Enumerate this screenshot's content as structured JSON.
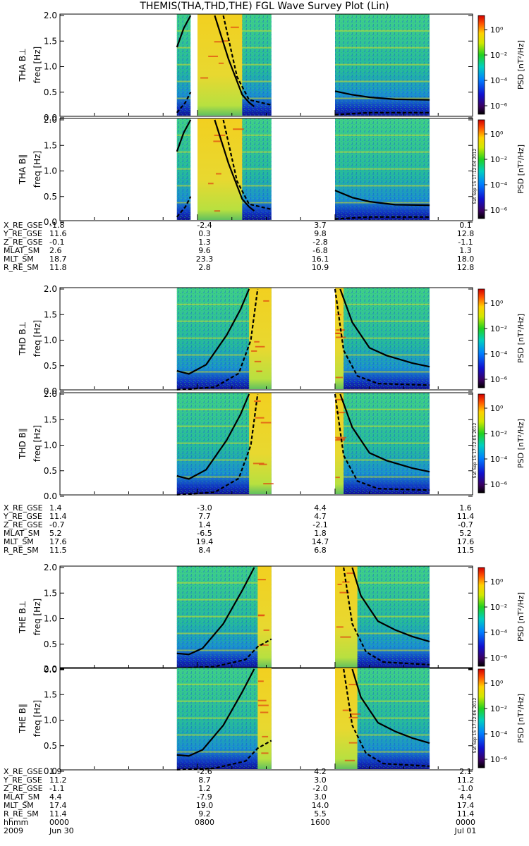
{
  "title": "THEMIS(THA,THD,THE) FGL Wave Survey Plot (Lin)",
  "colorbar": {
    "label": "PSD [nT²/Hz]",
    "ticks": [
      "10⁰",
      "10⁻²",
      "10⁻⁴",
      "10⁻⁶"
    ],
    "stamps": [
      "Sat Sep 15 17:12:04 2012",
      "Sat Sep 15 17:12:05 2012",
      "Sat Sep 15 17:12:06 2012"
    ]
  },
  "axis": {
    "ylabel": "freq [Hz]",
    "yticks": [
      "0.0",
      "0.5",
      "1.0",
      "1.5",
      "2.0"
    ]
  },
  "bottom": {
    "row_labels": [
      "hhmm",
      "2009"
    ],
    "hhmm": [
      "0000",
      "0800",
      "1600",
      "0000"
    ],
    "dates": [
      "Jun 30",
      "Jul 01"
    ]
  },
  "panels": [
    {
      "probe": "THA",
      "component": "B⊥"
    },
    {
      "probe": "THA",
      "component": "B∥"
    },
    {
      "probe": "THD",
      "component": "B⊥"
    },
    {
      "probe": "THD",
      "component": "B∥"
    },
    {
      "probe": "THE",
      "component": "B⊥"
    },
    {
      "probe": "THE",
      "component": "B∥"
    }
  ],
  "ephemeris": [
    {
      "labels": [
        "X_RE_GSE",
        "Y_RE_GSE",
        "Z_RE_GSE",
        "MLAT_SM",
        "MLT_SM",
        "R_RE_SM"
      ],
      "values": [
        [
          "-1.8",
          "-2.4",
          "3.7",
          "0.1"
        ],
        [
          "11.6",
          "0.3",
          "9.8",
          "12.8"
        ],
        [
          "-0.1",
          "1.3",
          "-2.8",
          "-1.1"
        ],
        [
          "2.6",
          "9.6",
          "-6.8",
          "1.3"
        ],
        [
          "18.7",
          "23.3",
          "16.1",
          "18.0"
        ],
        [
          "11.8",
          "2.8",
          "10.9",
          "12.8"
        ]
      ]
    },
    {
      "labels": [
        "X_RE_GSE",
        "Y_RE_GSE",
        "Z_RE_GSE",
        "MLAT_SM",
        "MLT_SM",
        "R_RE_SM"
      ],
      "values": [
        [
          "1.4",
          "-3.0",
          "4.4",
          "1.6"
        ],
        [
          "11.4",
          "7.7",
          "4.7",
          "11.4"
        ],
        [
          "-0.7",
          "1.4",
          "-2.1",
          "-0.7"
        ],
        [
          "5.2",
          "-6.5",
          "1.8",
          "5.2"
        ],
        [
          "17.6",
          "19.4",
          "14.7",
          "17.6"
        ],
        [
          "11.5",
          "8.4",
          "6.8",
          "11.5"
        ]
      ]
    },
    {
      "labels": [
        "X_RE_GSE",
        "Y_RE_GSE",
        "Z_RE_GSE",
        "MLAT_SM",
        "MLT_SM",
        "R_RE_SM"
      ],
      "values": [
        [
          "1.9",
          "-2.6",
          "4.2",
          "2.1"
        ],
        [
          "11.2",
          "8.7",
          "3.0",
          "11.2"
        ],
        [
          "-1.1",
          "1.2",
          "-2.0",
          "-1.0"
        ],
        [
          "4.4",
          "-7.9",
          "3.0",
          "4.4"
        ],
        [
          "17.4",
          "19.0",
          "14.0",
          "17.4"
        ],
        [
          "11.4",
          "9.2",
          "5.5",
          "11.4"
        ]
      ]
    }
  ],
  "chart_data": {
    "type": "heatmap",
    "title": "THEMIS(THA,THD,THE) FGL Wave Survey Plot (Lin)",
    "ylabel": "freq [Hz]",
    "ylim": [
      0,
      2.0
    ],
    "x_hours": [
      0,
      24
    ],
    "color_scale": "log",
    "color_range": [
      1e-07,
      10
    ],
    "data_coverage_hours": [
      [
        [
          6.8,
          7.6
        ],
        [
          8.0,
          12.3
        ],
        [
          16.0,
          21.5
        ]
      ],
      [
        [
          6.8,
          7.6
        ],
        [
          8.0,
          12.3
        ],
        [
          16.0,
          21.5
        ]
      ],
      [
        [
          6.8,
          12.3
        ],
        [
          16.0,
          21.5
        ]
      ],
      [
        [
          6.8,
          12.3
        ],
        [
          16.0,
          21.5
        ]
      ],
      [
        [
          6.8,
          12.3
        ],
        [
          16.0,
          21.5
        ]
      ],
      [
        [
          6.8,
          12.3
        ],
        [
          16.0,
          21.5
        ]
      ]
    ],
    "series": [
      {
        "panel": "THA B⊥",
        "solid_lines": [
          [
            [
              6.8,
              1.38
            ],
            [
              7.2,
              1.75
            ],
            [
              7.6,
              2.0
            ]
          ],
          [
            [
              9.0,
              2.0
            ],
            [
              9.8,
              1.15
            ],
            [
              10.6,
              0.45
            ],
            [
              11.0,
              0.3
            ],
            [
              11.3,
              0.22
            ]
          ],
          [
            [
              16.0,
              0.52
            ],
            [
              17.0,
              0.45
            ],
            [
              18.0,
              0.4
            ],
            [
              19.5,
              0.36
            ],
            [
              21.5,
              0.35
            ]
          ]
        ],
        "dashed_lines": [
          [
            [
              6.8,
              0.1
            ],
            [
              7.3,
              0.3
            ],
            [
              7.6,
              0.5
            ]
          ],
          [
            [
              9.5,
              2.0
            ],
            [
              10.3,
              0.8
            ],
            [
              11.0,
              0.35
            ],
            [
              12.3,
              0.25
            ]
          ],
          [
            [
              16.0,
              0.06
            ],
            [
              18.0,
              0.1
            ],
            [
              21.5,
              0.1
            ]
          ]
        ]
      },
      {
        "panel": "THA B∥",
        "solid_lines": [
          [
            [
              6.8,
              1.38
            ],
            [
              7.2,
              1.75
            ],
            [
              7.6,
              2.0
            ]
          ],
          [
            [
              9.0,
              2.0
            ],
            [
              9.8,
              1.15
            ],
            [
              10.6,
              0.45
            ],
            [
              11.0,
              0.3
            ],
            [
              11.3,
              0.22
            ]
          ],
          [
            [
              16.0,
              0.62
            ],
            [
              17.0,
              0.48
            ],
            [
              18.0,
              0.4
            ],
            [
              19.5,
              0.34
            ],
            [
              21.5,
              0.33
            ]
          ]
        ],
        "dashed_lines": [
          [
            [
              6.8,
              0.1
            ],
            [
              7.3,
              0.3
            ],
            [
              7.6,
              0.5
            ]
          ],
          [
            [
              9.5,
              2.0
            ],
            [
              10.3,
              0.8
            ],
            [
              11.0,
              0.35
            ],
            [
              12.3,
              0.25
            ]
          ],
          [
            [
              16.0,
              0.06
            ],
            [
              18.0,
              0.1
            ],
            [
              21.5,
              0.1
            ]
          ]
        ]
      },
      {
        "panel": "THD B⊥",
        "solid_lines": [
          [
            [
              6.8,
              0.4
            ],
            [
              7.5,
              0.34
            ],
            [
              8.5,
              0.52
            ],
            [
              9.7,
              1.1
            ],
            [
              10.5,
              1.6
            ],
            [
              11.0,
              2.0
            ]
          ],
          [
            [
              16.3,
              2.0
            ],
            [
              17.0,
              1.35
            ],
            [
              18.0,
              0.85
            ],
            [
              19.0,
              0.7
            ],
            [
              20.5,
              0.55
            ],
            [
              21.5,
              0.48
            ]
          ]
        ],
        "dashed_lines": [
          [
            [
              6.8,
              0.03
            ],
            [
              9.0,
              0.08
            ],
            [
              10.4,
              0.35
            ],
            [
              11.1,
              1.0
            ],
            [
              11.5,
              2.0
            ]
          ],
          [
            [
              16.0,
              2.0
            ],
            [
              16.5,
              0.8
            ],
            [
              17.3,
              0.3
            ],
            [
              18.5,
              0.15
            ],
            [
              21.5,
              0.12
            ]
          ]
        ]
      },
      {
        "panel": "THD B∥",
        "solid_lines": [
          [
            [
              6.8,
              0.4
            ],
            [
              7.5,
              0.34
            ],
            [
              8.5,
              0.52
            ],
            [
              9.7,
              1.1
            ],
            [
              10.5,
              1.6
            ],
            [
              11.0,
              2.0
            ]
          ],
          [
            [
              16.3,
              2.0
            ],
            [
              17.0,
              1.35
            ],
            [
              18.0,
              0.85
            ],
            [
              19.0,
              0.7
            ],
            [
              20.5,
              0.55
            ],
            [
              21.5,
              0.48
            ]
          ]
        ],
        "dashed_lines": [
          [
            [
              6.8,
              0.03
            ],
            [
              9.0,
              0.08
            ],
            [
              10.4,
              0.35
            ],
            [
              11.1,
              1.0
            ],
            [
              11.5,
              2.0
            ]
          ],
          [
            [
              16.0,
              2.0
            ],
            [
              16.5,
              0.8
            ],
            [
              17.3,
              0.3
            ],
            [
              18.5,
              0.15
            ],
            [
              21.5,
              0.12
            ]
          ]
        ]
      },
      {
        "panel": "THE B⊥",
        "solid_lines": [
          [
            [
              6.8,
              0.32
            ],
            [
              7.5,
              0.3
            ],
            [
              8.3,
              0.42
            ],
            [
              9.5,
              0.9
            ],
            [
              10.6,
              1.55
            ],
            [
              11.3,
              2.0
            ]
          ],
          [
            [
              17.0,
              2.0
            ],
            [
              17.5,
              1.45
            ],
            [
              18.5,
              0.95
            ],
            [
              19.5,
              0.78
            ],
            [
              20.5,
              0.65
            ],
            [
              21.5,
              0.55
            ]
          ]
        ],
        "dashed_lines": [
          [
            [
              6.8,
              0.03
            ],
            [
              9.0,
              0.06
            ],
            [
              10.8,
              0.2
            ],
            [
              11.5,
              0.45
            ],
            [
              12.3,
              0.6
            ]
          ],
          [
            [
              16.5,
              2.0
            ],
            [
              17.0,
              0.9
            ],
            [
              17.8,
              0.35
            ],
            [
              18.8,
              0.15
            ],
            [
              21.5,
              0.1
            ]
          ]
        ]
      },
      {
        "panel": "THE B∥",
        "solid_lines": [
          [
            [
              6.8,
              0.32
            ],
            [
              7.5,
              0.3
            ],
            [
              8.3,
              0.42
            ],
            [
              9.5,
              0.9
            ],
            [
              10.6,
              1.55
            ],
            [
              11.3,
              2.0
            ]
          ],
          [
            [
              17.0,
              2.0
            ],
            [
              17.5,
              1.45
            ],
            [
              18.5,
              0.95
            ],
            [
              19.5,
              0.78
            ],
            [
              20.5,
              0.65
            ],
            [
              21.5,
              0.55
            ]
          ]
        ],
        "dashed_lines": [
          [
            [
              6.8,
              0.03
            ],
            [
              9.0,
              0.06
            ],
            [
              10.8,
              0.2
            ],
            [
              11.5,
              0.45
            ],
            [
              12.3,
              0.6
            ]
          ],
          [
            [
              16.5,
              2.0
            ],
            [
              17.0,
              0.9
            ],
            [
              17.8,
              0.35
            ],
            [
              18.8,
              0.15
            ],
            [
              21.5,
              0.1
            ]
          ]
        ]
      }
    ]
  }
}
